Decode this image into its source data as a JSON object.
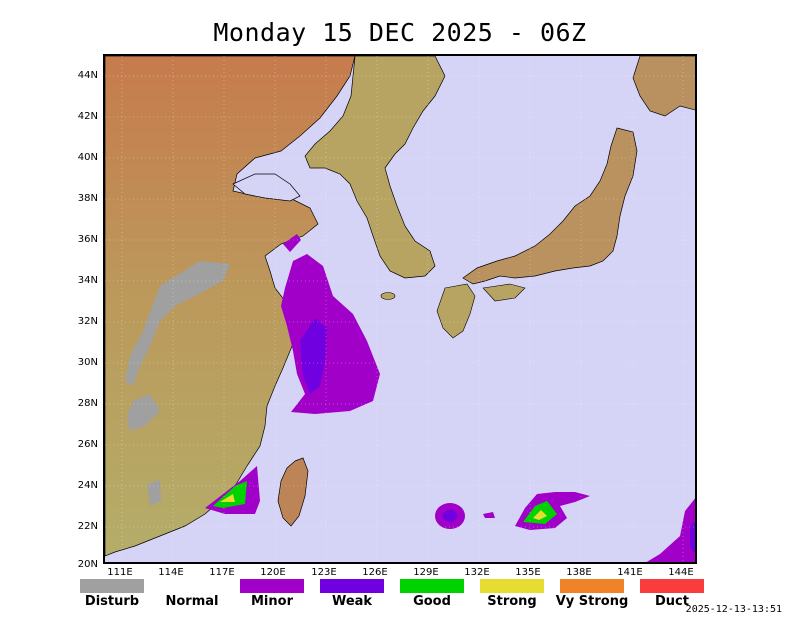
{
  "title": "Monday 15 DEC 2025 - 06Z",
  "lat_labels": [
    "44N",
    "42N",
    "40N",
    "38N",
    "36N",
    "34N",
    "32N",
    "30N",
    "28N",
    "26N",
    "24N",
    "22N",
    "20N"
  ],
  "lon_labels": [
    "111E",
    "114E",
    "117E",
    "120E",
    "123E",
    "126E",
    "129E",
    "132E",
    "135E",
    "138E",
    "141E",
    "144E"
  ],
  "legend": [
    {
      "label": "Disturb",
      "color": "#a0a0a0"
    },
    {
      "label": "Normal",
      "color": "#ffffff"
    },
    {
      "label": "Minor",
      "color": "#a000c8"
    },
    {
      "label": "Weak",
      "color": "#7000e0"
    },
    {
      "label": "Good",
      "color": "#00d200"
    },
    {
      "label": "Strong",
      "color": "#e6dc32"
    },
    {
      "label": "Vy Strong",
      "color": "#f08228"
    },
    {
      "label": "Duct",
      "color": "#fa3c3c"
    }
  ],
  "timestamp": "2025-12-13-13:51",
  "colors": {
    "sea": "#d5d4f7",
    "land_low": "#b5ad6a",
    "land_high": "#c45a3c",
    "minor": "#a000c8",
    "weak": "#7000e0",
    "good": "#00d200",
    "strong": "#e6dc32"
  }
}
